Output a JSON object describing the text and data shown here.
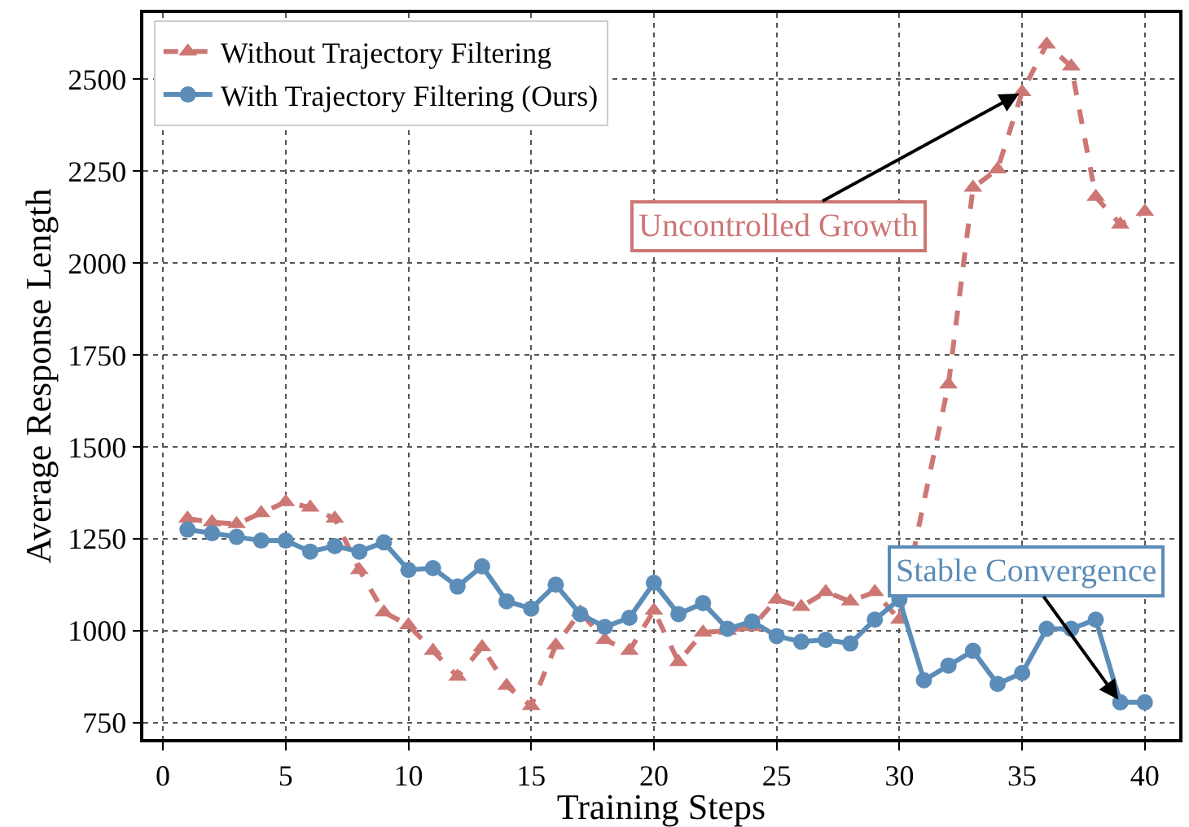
{
  "chart_data": {
    "type": "line",
    "xlabel": "Training Steps",
    "ylabel": "Average Response Length",
    "x": [
      1,
      2,
      3,
      4,
      5,
      6,
      7,
      8,
      9,
      10,
      11,
      12,
      13,
      14,
      15,
      16,
      17,
      18,
      19,
      20,
      21,
      22,
      23,
      24,
      25,
      26,
      27,
      28,
      29,
      30,
      31,
      32,
      33,
      34,
      35,
      36,
      37,
      38,
      39,
      40
    ],
    "series": [
      {
        "name": "Without Trajectory Filtering",
        "color": "#cd7775",
        "marker": "triangle",
        "line_style": "dashed",
        "values": [
          1305,
          1295,
          1290,
          1320,
          1350,
          1335,
          1305,
          1165,
          1050,
          1015,
          945,
          875,
          955,
          850,
          795,
          960,
          1050,
          975,
          945,
          1055,
          915,
          995,
          1000,
          1010,
          1085,
          1065,
          1105,
          1080,
          1105,
          1030,
          null,
          1670,
          2205,
          2255,
          2465,
          2595,
          2535,
          2180,
          2105,
          2140
        ]
      },
      {
        "name": "With Trajectory Filtering (Ours)",
        "color": "#5b8db8",
        "marker": "circle",
        "line_style": "solid",
        "values": [
          1275,
          1265,
          1255,
          1245,
          1245,
          1215,
          1230,
          1215,
          1240,
          1165,
          1170,
          1120,
          1175,
          1080,
          1060,
          1125,
          1045,
          1010,
          1035,
          1130,
          1045,
          1075,
          1005,
          1025,
          985,
          970,
          975,
          965,
          1030,
          1085,
          865,
          905,
          945,
          855,
          885,
          1005,
          1005,
          1030,
          805,
          805
        ]
      }
    ],
    "annotations": [
      {
        "text": "Uncontrolled Growth",
        "x": 35,
        "y": 2465
      },
      {
        "text": "Stable Convergence",
        "x": 39,
        "y": 805
      }
    ],
    "xlim": [
      -0.8,
      41.4
    ],
    "xticks": [
      0,
      5,
      10,
      15,
      20,
      25,
      30,
      35,
      40
    ],
    "ylim": [
      705,
      2680
    ],
    "yticks": [
      750,
      1000,
      1250,
      1500,
      1750,
      2000,
      2250,
      2500
    ],
    "grid": true,
    "legend": "top left"
  }
}
